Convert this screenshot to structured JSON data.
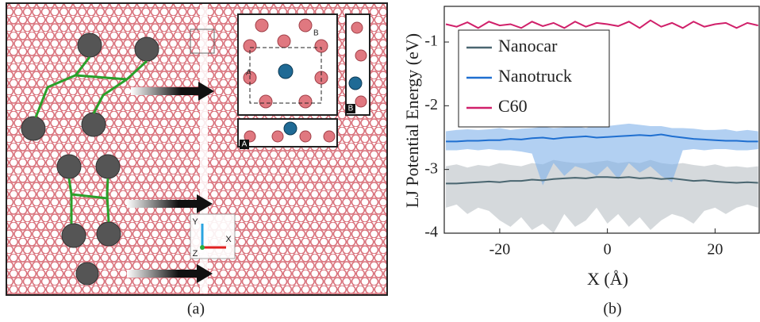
{
  "panel_a": {
    "caption": "(a)",
    "labels": [
      "A",
      "B",
      "A",
      "B",
      "X",
      "Y",
      "Z"
    ]
  },
  "chart_data": {
    "type": "line",
    "caption": "(b)",
    "xlabel": "X (Å)",
    "ylabel": "LJ Potential Energy (eV)",
    "xlim": [
      -30.3,
      28.2
    ],
    "xticks": [
      -20,
      0,
      20
    ],
    "ylim": [
      -4,
      -0.44
    ],
    "yticks": [
      -4,
      -3,
      -2,
      -1
    ],
    "legend": "upper left",
    "x": [
      -30,
      -28,
      -26,
      -24,
      -22,
      -20,
      -18,
      -16,
      -14,
      -12,
      -10,
      -8,
      -6,
      -4,
      -2,
      0,
      2,
      4,
      6,
      8,
      10,
      12,
      14,
      16,
      18,
      20,
      22,
      24,
      26,
      28
    ],
    "series": [
      {
        "name": "Nanocar",
        "color": "#4a6670",
        "band_color": "#b9c0c4",
        "values": [
          -3.22,
          -3.22,
          -3.21,
          -3.2,
          -3.19,
          -3.2,
          -3.18,
          -3.18,
          -3.16,
          -3.17,
          -3.15,
          -3.14,
          -3.13,
          -3.14,
          -3.12,
          -3.12,
          -3.13,
          -3.12,
          -3.14,
          -3.13,
          -3.15,
          -3.14,
          -3.16,
          -3.18,
          -3.17,
          -3.19,
          -3.2,
          -3.21,
          -3.2,
          -3.21
        ],
        "band_upper": [
          -2.95,
          -2.92,
          -2.97,
          -2.93,
          -2.95,
          -2.9,
          -2.93,
          -2.95,
          -2.9,
          -2.92,
          -2.85,
          -2.88,
          -2.9,
          -2.9,
          -2.88,
          -2.86,
          -2.9,
          -2.88,
          -2.9,
          -2.85,
          -2.9,
          -2.92,
          -2.9,
          -2.93,
          -2.95,
          -2.92,
          -2.96,
          -2.95,
          -2.97,
          -2.95
        ],
        "band_lower": [
          -3.6,
          -3.55,
          -3.7,
          -3.6,
          -3.65,
          -3.8,
          -3.9,
          -3.75,
          -3.95,
          -3.85,
          -4.0,
          -3.7,
          -3.9,
          -3.8,
          -3.6,
          -3.85,
          -3.7,
          -3.9,
          -3.75,
          -3.95,
          -3.8,
          -3.7,
          -3.75,
          -3.85,
          -3.65,
          -3.6,
          -3.7,
          -3.6,
          -3.55,
          -3.6
        ]
      },
      {
        "name": "Nanotruck",
        "color": "#1f6fd0",
        "band_color": "#7fb0ea",
        "values": [
          -2.56,
          -2.56,
          -2.55,
          -2.55,
          -2.54,
          -2.54,
          -2.52,
          -2.53,
          -2.51,
          -2.5,
          -2.52,
          -2.5,
          -2.49,
          -2.48,
          -2.5,
          -2.49,
          -2.48,
          -2.47,
          -2.46,
          -2.47,
          -2.45,
          -2.48,
          -2.5,
          -2.52,
          -2.53,
          -2.54,
          -2.55,
          -2.55,
          -2.56,
          -2.56
        ],
        "band_upper": [
          -2.4,
          -2.38,
          -2.37,
          -2.38,
          -2.37,
          -2.35,
          -2.38,
          -2.36,
          -2.35,
          -2.33,
          -2.35,
          -2.34,
          -2.32,
          -2.35,
          -2.3,
          -2.32,
          -2.3,
          -2.28,
          -2.3,
          -2.32,
          -2.32,
          -2.35,
          -2.35,
          -2.36,
          -2.38,
          -2.38,
          -2.37,
          -2.4,
          -2.38,
          -2.4
        ],
        "band_lower": [
          -2.7,
          -2.7,
          -2.68,
          -2.7,
          -2.68,
          -2.7,
          -2.7,
          -2.72,
          -2.75,
          -3.25,
          -2.9,
          -3.1,
          -2.95,
          -3.0,
          -3.1,
          -2.95,
          -3.15,
          -2.9,
          -3.05,
          -2.95,
          -3.1,
          -3.2,
          -2.7,
          -2.68,
          -2.7,
          -2.68,
          -2.68,
          -2.7,
          -2.7,
          -2.68
        ]
      },
      {
        "name": "C60",
        "color": "#d0206a",
        "values": [
          -0.72,
          -0.76,
          -0.69,
          -0.78,
          -0.68,
          -0.74,
          -0.72,
          -0.78,
          -0.68,
          -0.75,
          -0.7,
          -0.78,
          -0.68,
          -0.76,
          -0.7,
          -0.72,
          -0.75,
          -0.68,
          -0.78,
          -0.66,
          -0.76,
          -0.7,
          -0.78,
          -0.68,
          -0.76,
          -0.72,
          -0.7,
          -0.78,
          -0.7,
          -0.74
        ]
      }
    ]
  }
}
